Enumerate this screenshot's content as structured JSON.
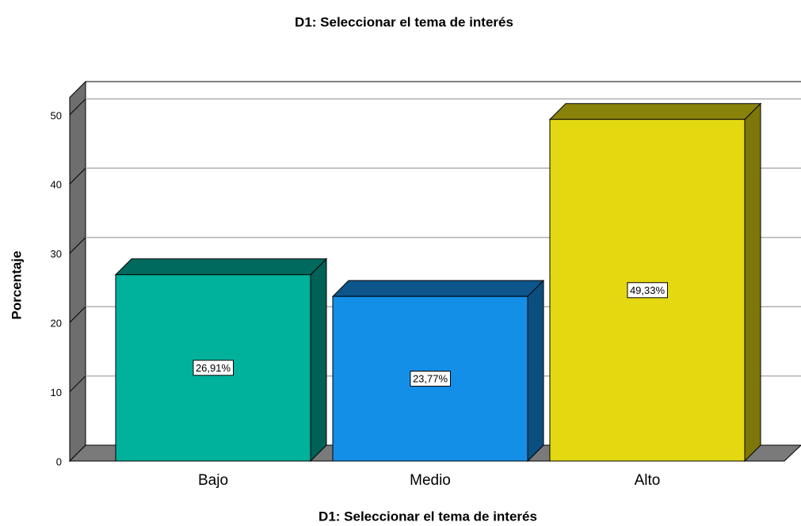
{
  "chart_data": {
    "type": "bar3d",
    "title": "D1: Seleccionar el tema de interés",
    "xlabel": "D1: Seleccionar el tema de interés",
    "ylabel": "Porcentaje",
    "categories": [
      "Bajo",
      "Medio",
      "Alto"
    ],
    "values": [
      26.91,
      23.77,
      49.33
    ],
    "value_labels": [
      "26,91%",
      "23,77%",
      "49,33%"
    ],
    "colors": [
      "#00b19c",
      "#148fe8",
      "#e4d911"
    ],
    "ylim": [
      0,
      52.5
    ],
    "yticks": [
      0,
      10,
      20,
      30,
      40,
      50
    ],
    "grid": true
  }
}
